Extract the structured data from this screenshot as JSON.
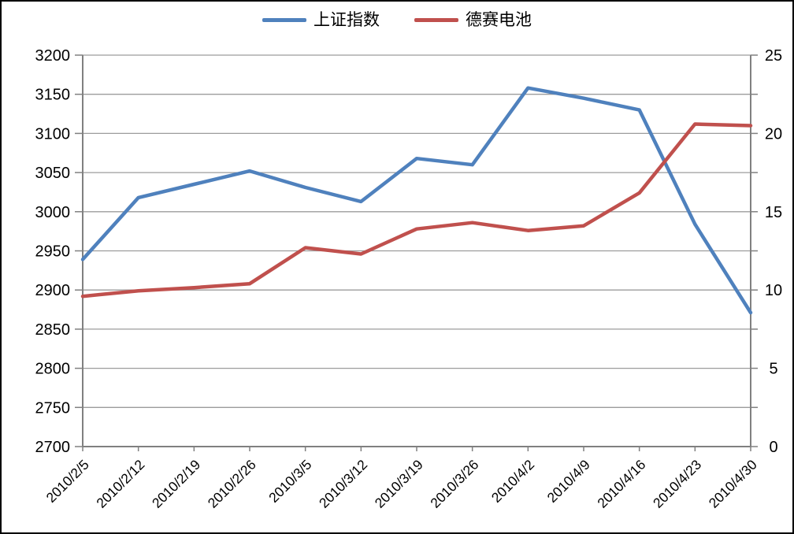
{
  "chart_data": {
    "type": "line",
    "title": "",
    "legend_position": "top",
    "grid": true,
    "categories": [
      "2010/2/5",
      "2010/2/12",
      "2010/2/19",
      "2010/2/26",
      "2010/3/5",
      "2010/3/12",
      "2010/3/19",
      "2010/3/26",
      "2010/4/2",
      "2010/4/9",
      "2010/4/16",
      "2010/4/23",
      "2010/4/30"
    ],
    "series": [
      {
        "name": "上证指数",
        "axis": "left",
        "color": "#4F81BD",
        "values": [
          2939,
          3018,
          3035,
          3052,
          3031,
          3013,
          3068,
          3060,
          3158,
          3145,
          3130,
          2984,
          2871
        ]
      },
      {
        "name": "德赛电池",
        "axis": "right",
        "color": "#C0504D",
        "values": [
          9.6,
          9.95,
          10.15,
          10.4,
          12.7,
          12.3,
          13.9,
          14.3,
          13.8,
          14.1,
          16.2,
          20.6,
          20.5
        ]
      }
    ],
    "left_axis": {
      "min": 2700,
      "max": 3200,
      "step": 50,
      "tick_labels": [
        "3200",
        "3150",
        "3100",
        "3050",
        "3000",
        "2950",
        "2900",
        "2850",
        "2800",
        "2750",
        "2700"
      ]
    },
    "right_axis": {
      "min": 0,
      "max": 25,
      "step": 5,
      "tick_labels": [
        "25",
        "20",
        "15",
        "10",
        "5",
        "0"
      ]
    }
  },
  "colors": {
    "series_shanghai": "#4F81BD",
    "series_desay": "#C0504D",
    "gridline": "#9C9C9C",
    "axis": "#808080",
    "text": "#000000",
    "background": "#FFFFFF",
    "border": "#000000"
  }
}
